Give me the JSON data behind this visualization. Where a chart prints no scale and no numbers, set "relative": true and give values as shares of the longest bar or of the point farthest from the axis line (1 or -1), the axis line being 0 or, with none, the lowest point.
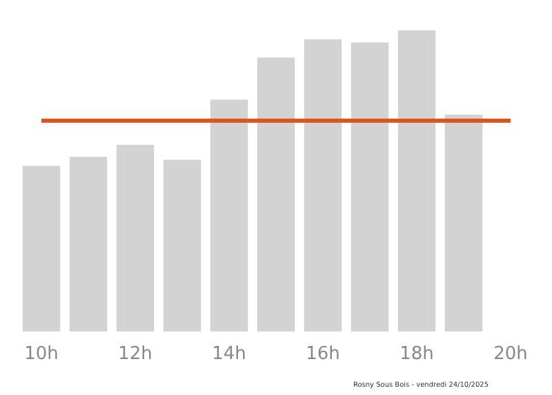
{
  "chart_data": {
    "type": "bar",
    "relative": true,
    "categories": [
      "10h",
      null,
      "12h",
      null,
      "14h",
      null,
      "16h",
      null,
      "18h",
      null,
      "20h"
    ],
    "series": [
      {
        "color": "#d3d3d3",
        "values": [
          0.55,
          0.58,
          0.62,
          0.57,
          0.77,
          0.91,
          0.97,
          0.96,
          1,
          0.72,
          null
        ]
      }
    ],
    "ref_lines": [
      {
        "axis": "y",
        "value": 0.7,
        "color": "#d9541e"
      }
    ],
    "annotations": [
      "Rosny Sous Bois - vendredi 24/10/2025"
    ]
  }
}
